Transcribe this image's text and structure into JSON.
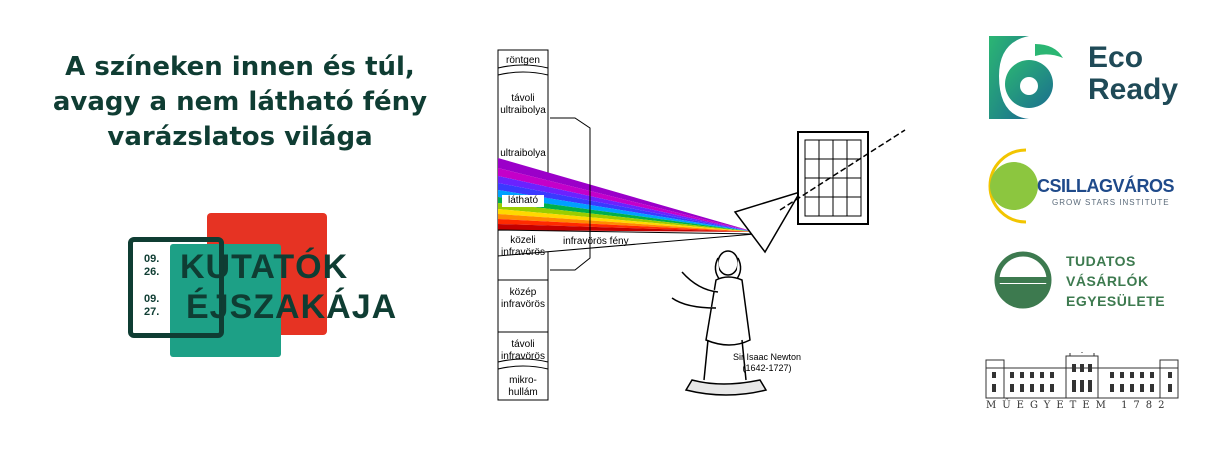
{
  "title": {
    "line1": "A színeken innen és túl,",
    "line2": "avagy a nem látható fény",
    "line3": "varázslatos világa"
  },
  "kutatok_logo": {
    "date1_a": "09.",
    "date1_b": "26.",
    "date2_a": "09.",
    "date2_b": "27.",
    "word1": "KUTATÓK",
    "word2": "ÉJSZAKÁJA",
    "colors": {
      "red": "#e63323",
      "green": "#1da086",
      "dark": "#0f3d33"
    }
  },
  "spectrum": {
    "bands": [
      {
        "label": "röntgen"
      },
      {
        "label": "távoli ultraibolya"
      },
      {
        "label": "ultraibolya"
      },
      {
        "label": "látható"
      },
      {
        "label": "közeli infravörös"
      },
      {
        "label": "közép infravörös"
      },
      {
        "label": "távoli infravörös"
      },
      {
        "label": "mikro-hullám"
      }
    ],
    "beam_label": "infravörös fény",
    "newton_name": "Sir Isaac Newton",
    "newton_years": "(1642-1727)"
  },
  "partners": {
    "ecoready": {
      "line1": "Eco",
      "line2": "Ready"
    },
    "csillag": {
      "name": "CSILLAGVÁROS",
      "sub": "GROW STARS INSTITUTE"
    },
    "tudatos": {
      "line1": "TUDATOS",
      "line2": "VÁSÁRLÓK",
      "line3": "EGYESÜLETE"
    },
    "muegyetem": {
      "text": "MŰEGYETEM 1782"
    }
  }
}
